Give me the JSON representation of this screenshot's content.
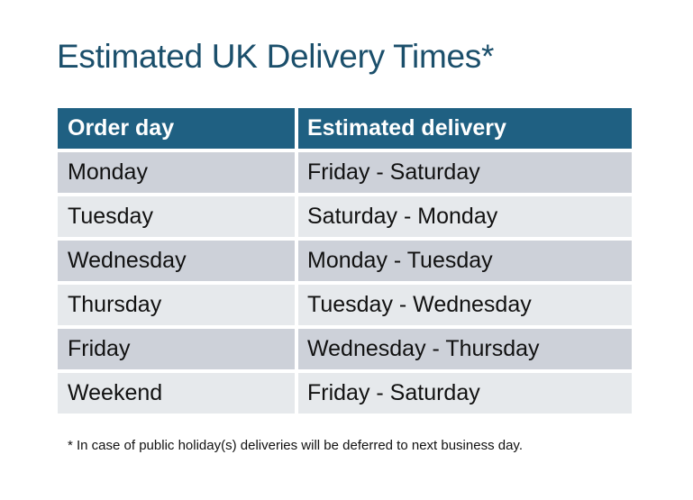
{
  "title": "Estimated UK Delivery Times*",
  "table": {
    "headers": [
      "Order day",
      "Estimated delivery"
    ],
    "rows": [
      [
        "Monday",
        "Friday - Saturday"
      ],
      [
        "Tuesday",
        "Saturday - Monday"
      ],
      [
        "Wednesday",
        "Monday - Tuesday"
      ],
      [
        "Thursday",
        "Tuesday - Wednesday"
      ],
      [
        "Friday",
        "Wednesday - Thursday"
      ],
      [
        "Weekend",
        "Friday - Saturday"
      ]
    ]
  },
  "footnote": "* In case of public holiday(s) deliveries will be deferred to next business day.",
  "colors": {
    "header": "#1F6082",
    "title": "#1B4F6B",
    "row_dark": "#CDD1D9",
    "row_light": "#E6E9EC"
  }
}
